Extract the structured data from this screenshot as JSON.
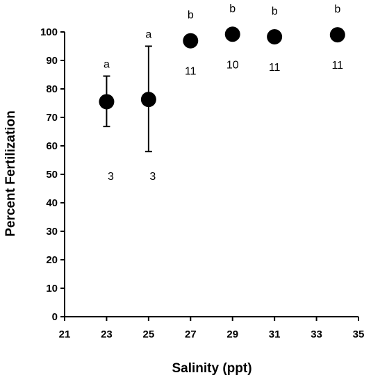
{
  "chart_data": {
    "type": "scatter",
    "title": "",
    "xlabel": "Salinity (ppt)",
    "ylabel": "Percent Fertilization",
    "xlim": [
      21,
      35
    ],
    "ylim": [
      0,
      100
    ],
    "x_ticks": [
      21,
      23,
      25,
      27,
      29,
      31,
      33,
      35
    ],
    "y_ticks": [
      0,
      10,
      20,
      30,
      40,
      50,
      60,
      70,
      80,
      90,
      100
    ],
    "grid": false,
    "legend": "none",
    "marker_color": "#000000",
    "points": [
      {
        "x": 23,
        "y": 75.5,
        "err_low": 66.8,
        "err_high": 84.5,
        "group": "a",
        "n": "3"
      },
      {
        "x": 25,
        "y": 76.3,
        "err_low": 58,
        "err_high": 95,
        "group": "a",
        "n": "3"
      },
      {
        "x": 27,
        "y": 96.9,
        "group": "b",
        "n": "11"
      },
      {
        "x": 29,
        "y": 99.2,
        "group": "b",
        "n": "10"
      },
      {
        "x": 31,
        "y": 98.3,
        "group": "b",
        "n": "11"
      },
      {
        "x": 34,
        "y": 99.0,
        "group": "b",
        "n": "11"
      }
    ]
  }
}
